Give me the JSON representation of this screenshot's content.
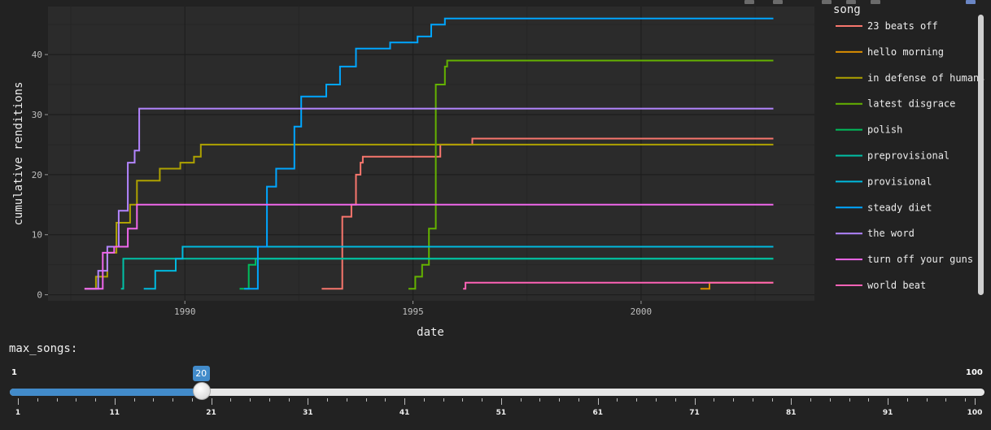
{
  "chart_data": {
    "type": "line",
    "step": true,
    "xlabel": "date",
    "ylabel": "cumulative renditions",
    "x_ticks": [
      1990,
      1995,
      2000
    ],
    "y_ticks": [
      0,
      10,
      20,
      30,
      40
    ],
    "xlim": [
      1987.0,
      2003.8
    ],
    "ylim": [
      -1,
      48
    ],
    "grid": true,
    "legend_title": "song",
    "legend_placement": "right",
    "series": [
      {
        "name": "23 beats off",
        "color": "#f8766d",
        "points": [
          [
            1993.0,
            1
          ],
          [
            1993.3,
            1
          ],
          [
            1993.45,
            13
          ],
          [
            1993.65,
            15
          ],
          [
            1993.75,
            20
          ],
          [
            1993.85,
            22
          ],
          [
            1993.9,
            23
          ],
          [
            1995.5,
            23
          ],
          [
            1995.6,
            25
          ],
          [
            1996.3,
            26
          ],
          [
            2002.9,
            26
          ]
        ]
      },
      {
        "name": "hello morning",
        "color": "#db8e00",
        "points": [
          [
            2001.3,
            1
          ],
          [
            2001.45,
            1
          ],
          [
            2001.5,
            2
          ],
          [
            2002.9,
            2
          ]
        ]
      },
      {
        "name": "in defense of humans",
        "color": "#aea200",
        "points": [
          [
            1987.8,
            1
          ],
          [
            1988.05,
            3
          ],
          [
            1988.3,
            7
          ],
          [
            1988.5,
            12
          ],
          [
            1988.8,
            15
          ],
          [
            1988.95,
            19
          ],
          [
            1989.45,
            21
          ],
          [
            1989.9,
            22
          ],
          [
            1990.2,
            23
          ],
          [
            1990.35,
            25
          ],
          [
            2002.9,
            25
          ]
        ]
      },
      {
        "name": "latest disgrace",
        "color": "#64b200",
        "points": [
          [
            1994.9,
            1
          ],
          [
            1995.05,
            3
          ],
          [
            1995.2,
            5
          ],
          [
            1995.35,
            11
          ],
          [
            1995.5,
            35
          ],
          [
            1995.7,
            38
          ],
          [
            1995.75,
            39
          ],
          [
            2002.9,
            39
          ]
        ]
      },
      {
        "name": "polish",
        "color": "#00bd5c",
        "points": [
          [
            1991.2,
            1
          ],
          [
            1991.4,
            5
          ],
          [
            1991.55,
            6
          ],
          [
            2002.9,
            6
          ]
        ]
      },
      {
        "name": "preprovisional",
        "color": "#00c1a7",
        "points": [
          [
            1988.6,
            1
          ],
          [
            1988.65,
            6
          ],
          [
            1989.3,
            6
          ],
          [
            2002.9,
            6
          ]
        ]
      },
      {
        "name": "provisional",
        "color": "#00bade",
        "points": [
          [
            1989.1,
            1
          ],
          [
            1989.35,
            4
          ],
          [
            1989.8,
            6
          ],
          [
            1989.95,
            8
          ],
          [
            2002.9,
            8
          ]
        ]
      },
      {
        "name": "steady diet",
        "color": "#00a6ff",
        "points": [
          [
            1991.3,
            1
          ],
          [
            1991.6,
            8
          ],
          [
            1991.8,
            18
          ],
          [
            1992.0,
            21
          ],
          [
            1992.4,
            28
          ],
          [
            1992.55,
            33
          ],
          [
            1993.1,
            35
          ],
          [
            1993.4,
            38
          ],
          [
            1993.75,
            41
          ],
          [
            1994.5,
            42
          ],
          [
            1995.1,
            43
          ],
          [
            1995.4,
            45
          ],
          [
            1995.7,
            46
          ],
          [
            2002.9,
            46
          ]
        ]
      },
      {
        "name": "the word",
        "color": "#b385ff",
        "points": [
          [
            1987.8,
            1
          ],
          [
            1988.1,
            4
          ],
          [
            1988.3,
            8
          ],
          [
            1988.55,
            14
          ],
          [
            1988.75,
            22
          ],
          [
            1988.9,
            24
          ],
          [
            1989.0,
            31
          ],
          [
            2002.9,
            31
          ]
        ]
      },
      {
        "name": "turn off your guns",
        "color": "#ef67eb",
        "points": [
          [
            1987.8,
            1
          ],
          [
            1988.2,
            7
          ],
          [
            1988.45,
            8
          ],
          [
            1988.75,
            11
          ],
          [
            1988.95,
            15
          ],
          [
            2002.9,
            15
          ]
        ]
      },
      {
        "name": "world beat",
        "color": "#ff63b6",
        "points": [
          [
            1996.1,
            1
          ],
          [
            1996.15,
            2
          ],
          [
            2002.9,
            2
          ]
        ]
      }
    ]
  },
  "controls": {
    "slider_label": "max_songs:",
    "min": 1,
    "max": 100,
    "value": 20,
    "min_label": "1",
    "max_label": "100",
    "value_label": "20",
    "tick_labels": [
      "1",
      "11",
      "21",
      "31",
      "41",
      "51",
      "61",
      "71",
      "81",
      "91",
      "100"
    ]
  }
}
